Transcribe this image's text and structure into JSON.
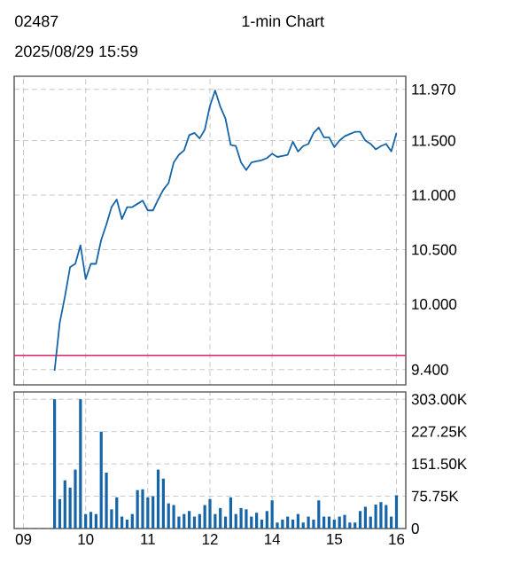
{
  "chart_data": [
    {
      "type": "line",
      "title": "02487",
      "subtitle": "1-min Chart",
      "annotations": [
        "2025/08/29 15:59"
      ],
      "color": "#1565a8",
      "grid": true,
      "tick_labels": "y",
      "categories": [
        "09",
        null,
        null,
        null,
        null,
        null,
        null,
        null,
        null,
        null,
        null,
        null,
        "10",
        null,
        null,
        null,
        null,
        null,
        null,
        null,
        null,
        null,
        null,
        null,
        "11",
        null,
        null,
        null,
        null,
        null,
        null,
        null,
        null,
        null,
        null,
        null,
        "12",
        null,
        null,
        null,
        null,
        null,
        null,
        null,
        null,
        null,
        null,
        null,
        "14",
        null,
        null,
        null,
        null,
        null,
        null,
        null,
        null,
        null,
        null,
        null,
        "15",
        null,
        null,
        null,
        null,
        null,
        null,
        null,
        null,
        null,
        null,
        null,
        "16"
      ],
      "ylim": [
        9.26,
        12.09
      ],
      "yticks": [
        {
          "value": 9.4,
          "label": "9.400"
        },
        {
          "value": 10.0,
          "label": "10.000"
        },
        {
          "value": 10.5,
          "label": "10.500"
        },
        {
          "value": 11.0,
          "label": "11.000"
        },
        {
          "value": 11.5,
          "label": "11.500"
        },
        {
          "value": 11.97,
          "label": "11.970"
        }
      ],
      "ref_lines": [
        {
          "axis": "y",
          "value": 9.53,
          "color": "#e0206a"
        }
      ],
      "values": [
        null,
        null,
        null,
        null,
        null,
        null,
        9.39,
        9.83,
        10.07,
        10.34,
        10.37,
        10.54,
        10.23,
        10.37,
        10.37,
        10.59,
        10.73,
        10.89,
        10.96,
        10.78,
        10.89,
        10.89,
        10.92,
        10.95,
        10.86,
        10.86,
        10.96,
        11.05,
        11.11,
        11.3,
        11.37,
        11.41,
        11.55,
        11.57,
        11.52,
        11.6,
        11.82,
        11.96,
        11.81,
        11.7,
        11.46,
        11.45,
        11.3,
        11.23,
        11.3,
        11.31,
        11.32,
        11.34,
        11.38,
        11.35,
        11.36,
        11.37,
        11.49,
        11.4,
        11.45,
        11.47,
        11.57,
        11.62,
        11.53,
        11.53,
        11.44,
        11.5,
        11.54,
        11.56,
        11.58,
        11.58,
        11.5,
        11.47,
        11.42,
        11.45,
        11.47,
        11.4,
        11.57
      ]
    },
    {
      "type": "bar",
      "color": "#1565a8",
      "grid": true,
      "categories": [
        "09",
        null,
        null,
        null,
        null,
        null,
        null,
        null,
        null,
        null,
        null,
        null,
        "10",
        null,
        null,
        null,
        null,
        null,
        null,
        null,
        null,
        null,
        null,
        null,
        "11",
        null,
        null,
        null,
        null,
        null,
        null,
        null,
        null,
        null,
        null,
        null,
        "12",
        null,
        null,
        null,
        null,
        null,
        null,
        null,
        null,
        null,
        null,
        null,
        "14",
        null,
        null,
        null,
        null,
        null,
        null,
        null,
        null,
        null,
        null,
        null,
        "15",
        null,
        null,
        null,
        null,
        null,
        null,
        null,
        null,
        null,
        null,
        null,
        "16"
      ],
      "ylim": [
        0,
        320000
      ],
      "yticks": [
        0,
        {
          "value": 75750,
          "label": "75.75K"
        },
        {
          "value": 151500,
          "label": "151.50K"
        },
        {
          "value": 227250,
          "label": "227.25K"
        },
        {
          "value": 303000,
          "label": "303.00K"
        }
      ],
      "values": [
        null,
        null,
        null,
        null,
        null,
        null,
        303000,
        69000,
        113000,
        96000,
        138000,
        303000,
        34000,
        39000,
        34000,
        227000,
        131000,
        45000,
        73000,
        28000,
        21000,
        34000,
        90000,
        92000,
        73000,
        76000,
        138000,
        117000,
        59000,
        55000,
        28000,
        34000,
        41000,
        28000,
        34000,
        55000,
        69000,
        34000,
        48000,
        28000,
        73000,
        34000,
        48000,
        45000,
        28000,
        37000,
        21000,
        41000,
        66000,
        14000,
        21000,
        28000,
        21000,
        34000,
        14000,
        28000,
        21000,
        66000,
        28000,
        28000,
        21000,
        28000,
        32000,
        14000,
        14000,
        41000,
        51000,
        28000,
        56000,
        62000,
        55000,
        28000,
        78000
      ]
    }
  ]
}
